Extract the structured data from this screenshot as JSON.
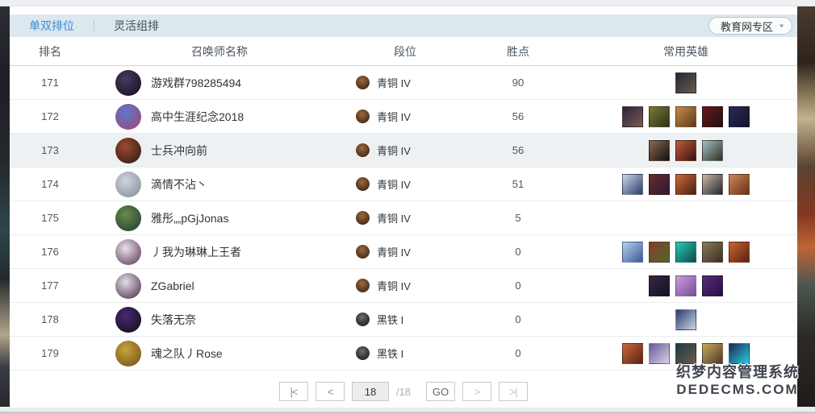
{
  "colors": {
    "accent_blue": "#3d8cd4",
    "tabbar_bg": "#dde7ee",
    "row_highlight": "#eef1f4",
    "bronze": "#6a4426",
    "iron": "#3c4146"
  },
  "tabs": [
    {
      "label": "单双排位",
      "active": true
    },
    {
      "label": "灵活组排",
      "active": false
    }
  ],
  "region_select": {
    "label": "教育网专区",
    "icon": "chevron-down"
  },
  "table": {
    "headers": [
      "排名",
      "召唤师名称",
      "段位",
      "胜点",
      "常用英雄"
    ],
    "rows": [
      {
        "rank": "171",
        "name": "游戏群798285494",
        "tier": "青铜 IV",
        "tier_type": "bronze",
        "points": "90",
        "highlighted": false,
        "avatar_colors": [
          "#4a3b5e",
          "#181226"
        ],
        "heroes": [
          [
            "#23283a",
            "#6a5a48"
          ]
        ]
      },
      {
        "rank": "172",
        "name": "高中生涯纪念2018",
        "tier": "青铜 IV",
        "tier_type": "bronze",
        "points": "56",
        "highlighted": false,
        "avatar_colors": [
          "#5a79c9",
          "#9a4a7e"
        ],
        "heroes": [
          [
            "#2a2440",
            "#7a5a4a"
          ],
          [
            "#7a7a3a",
            "#2f2f18"
          ],
          [
            "#c98a4a",
            "#5a3a20"
          ],
          [
            "#6a1a1a",
            "#1f0f14"
          ],
          [
            "#2a2a5a",
            "#12142a"
          ]
        ]
      },
      {
        "rank": "173",
        "name": "士兵冲向前",
        "tier": "青铜 IV",
        "tier_type": "bronze",
        "points": "56",
        "highlighted": true,
        "avatar_colors": [
          "#9a4a34",
          "#3a1f14"
        ],
        "heroes": [
          [
            "#8a6a52",
            "#14100e"
          ],
          [
            "#c05a3a",
            "#3a1410"
          ],
          [
            "#9ac4c4",
            "#3a2a20"
          ]
        ]
      },
      {
        "rank": "174",
        "name": "滴情不沾丶",
        "tier": "青铜 IV",
        "tier_type": "bronze",
        "points": "51",
        "highlighted": false,
        "avatar_colors": [
          "#cfd5dc",
          "#8a93a2"
        ],
        "heroes": [
          [
            "#cdd8e8",
            "#2a3a6a"
          ],
          [
            "#6a2a2a",
            "#2a1a3a"
          ],
          [
            "#c96a3a",
            "#4a1f14"
          ],
          [
            "#c9b8a8",
            "#22242e"
          ],
          [
            "#c98a5a",
            "#6a2f18"
          ]
        ]
      },
      {
        "rank": "175",
        "name": "雅彤„„pGjJonas",
        "tier": "青铜 IV",
        "tier_type": "bronze",
        "points": "5",
        "highlighted": false,
        "avatar_colors": [
          "#6a8a4a",
          "#27453a"
        ],
        "heroes": []
      },
      {
        "rank": "176",
        "name": "丿我为琳琳上王者",
        "tier": "青铜 IV",
        "tier_type": "bronze",
        "points": "0",
        "highlighted": false,
        "avatar_colors": [
          "#e8e2ea",
          "#6a4a62"
        ],
        "heroes": [
          [
            "#b8d0e8",
            "#3a5a9a"
          ],
          [
            "#8a3a2a",
            "#4a6a2a"
          ],
          [
            "#2ac9b8",
            "#0f4a44"
          ],
          [
            "#8a7a5a",
            "#3a2f20"
          ],
          [
            "#c9642a",
            "#5a2014"
          ]
        ]
      },
      {
        "rank": "177",
        "name": "ZGabriel",
        "tier": "青铜 IV",
        "tier_type": "bronze",
        "points": "0",
        "highlighted": false,
        "avatar_colors": [
          "#e4dee8",
          "#5a4258"
        ],
        "heroes": [
          [
            "#3a2440",
            "#14102a"
          ],
          [
            "#c9a0d8",
            "#7a4a9a"
          ],
          [
            "#5a2a7a",
            "#241040"
          ]
        ]
      },
      {
        "rank": "178",
        "name": "失落无奈",
        "tier": "黑铁 I",
        "tier_type": "iron",
        "points": "0",
        "highlighted": false,
        "avatar_colors": [
          "#4a2a6e",
          "#141028"
        ],
        "heroes": [
          [
            "#2a3a6a",
            "#c9d8e8"
          ]
        ]
      },
      {
        "rank": "179",
        "name": "魂之队丿Rose",
        "tier": "黑铁 I",
        "tier_type": "iron",
        "points": "0",
        "highlighted": false,
        "avatar_colors": [
          "#c9a23f",
          "#7a5a1a"
        ],
        "heroes": [
          [
            "#c96a3a",
            "#5a2014"
          ],
          [
            "#6a5a9a",
            "#d8d0e8"
          ],
          [
            "#1f3a44",
            "#6a5a4a"
          ],
          [
            "#c9a85a",
            "#4a3a2a"
          ],
          [
            "#1a2a4a",
            "#2ac9e8"
          ]
        ]
      }
    ]
  },
  "pagination": {
    "first": "|<",
    "prev": "<",
    "page": "18",
    "total": "/18",
    "go": "GO",
    "next": ">",
    "last": ">|"
  },
  "watermark": {
    "line1": "织梦内容管理系统",
    "line2": "DEDECMS.COM"
  }
}
